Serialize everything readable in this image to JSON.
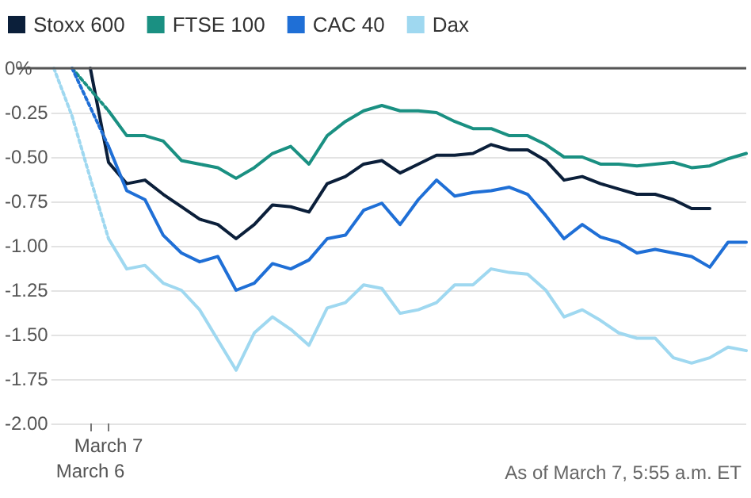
{
  "chart_data": {
    "type": "line",
    "legend": "top left",
    "grid": "y",
    "line_style": "solid",
    "marker": "none",
    "categories": [
      null,
      null,
      null,
      null,
      "March 6",
      "March 7",
      null,
      null,
      null,
      null,
      null,
      null,
      null,
      null,
      null,
      null,
      null,
      null,
      null,
      null,
      null,
      null,
      null,
      null,
      null,
      null,
      null,
      null,
      null,
      null,
      null,
      null,
      null,
      null,
      null,
      null,
      null,
      null,
      null,
      null,
      null
    ],
    "ylim": [
      -2,
      0
    ],
    "yticks": [
      {
        "value": 0,
        "label": "0%"
      },
      {
        "value": -0.25,
        "label": "-0.25"
      },
      {
        "value": -0.5,
        "label": "-0.50"
      },
      {
        "value": -0.75,
        "label": "-0.75"
      },
      {
        "value": -1,
        "label": "-1.00"
      },
      {
        "value": -1.25,
        "label": "-1.25"
      },
      {
        "value": -1.5,
        "label": "-1.50"
      },
      {
        "value": -1.75,
        "label": "-1.75"
      },
      {
        "value": -2,
        "label": "-2.00"
      }
    ],
    "ref_lines": [
      {
        "axis": "y",
        "value": 0,
        "color": "#555555"
      }
    ],
    "annotations": [
      "As of March 7, 5:55 a.m. ET"
    ],
    "series": [
      {
        "name": "Stoxx 600",
        "color": "#0b1f3a",
        "values": [
          null,
          null,
          null,
          null,
          0,
          -0.53,
          -0.65,
          -0.63,
          -0.71,
          -0.78,
          -0.85,
          -0.88,
          -0.96,
          -0.88,
          -0.77,
          -0.78,
          -0.81,
          -0.65,
          -0.61,
          -0.54,
          -0.52,
          -0.59,
          -0.54,
          -0.49,
          -0.49,
          -0.48,
          -0.43,
          -0.46,
          -0.46,
          -0.52,
          -0.63,
          -0.61,
          -0.65,
          -0.68,
          -0.71,
          -0.71,
          -0.74,
          -0.79,
          -0.79,
          null,
          null
        ]
      },
      {
        "name": "FTSE 100",
        "color": "#1a9082",
        "values": [
          null,
          null,
          null,
          null,
          null,
          -0.24,
          -0.38,
          -0.38,
          -0.41,
          -0.52,
          -0.54,
          -0.56,
          -0.62,
          -0.56,
          -0.48,
          -0.44,
          -0.54,
          -0.38,
          -0.3,
          -0.24,
          -0.21,
          -0.24,
          -0.24,
          -0.25,
          -0.3,
          -0.34,
          -0.34,
          -0.38,
          -0.38,
          -0.43,
          -0.5,
          -0.5,
          -0.54,
          -0.54,
          -0.55,
          -0.54,
          -0.53,
          -0.56,
          -0.55,
          -0.51,
          -0.48
        ]
      },
      {
        "name": "CAC 40",
        "color": "#1f6fd6",
        "values": [
          null,
          null,
          null,
          null,
          null,
          -0.44,
          -0.69,
          -0.74,
          -0.94,
          -1.04,
          -1.09,
          -1.06,
          -1.25,
          -1.21,
          -1.1,
          -1.13,
          -1.08,
          -0.96,
          -0.94,
          -0.8,
          -0.76,
          -0.88,
          -0.74,
          -0.63,
          -0.72,
          -0.7,
          -0.69,
          -0.67,
          -0.71,
          -0.83,
          -0.96,
          -0.88,
          -0.95,
          -0.98,
          -1.04,
          -1.02,
          -1.04,
          -1.06,
          -1.12,
          -0.98,
          -0.98
        ]
      },
      {
        "name": "Dax",
        "color": "#9fd8f0",
        "values": [
          null,
          null,
          null,
          null,
          null,
          -0.96,
          -1.13,
          -1.11,
          -1.21,
          -1.25,
          -1.36,
          -1.53,
          -1.7,
          -1.49,
          -1.4,
          -1.47,
          -1.56,
          -1.35,
          -1.32,
          -1.22,
          -1.24,
          -1.38,
          -1.36,
          -1.32,
          -1.22,
          -1.22,
          -1.13,
          -1.15,
          -1.16,
          -1.25,
          -1.4,
          -1.36,
          -1.42,
          -1.49,
          -1.52,
          -1.52,
          -1.63,
          -1.66,
          -1.63,
          -1.57,
          -1.59
        ]
      },
      {
        "color": "#1a9082",
        "line_style": "dotted",
        "values": [
          null,
          null,
          null,
          0,
          -0.12,
          -0.24,
          null,
          null,
          null,
          null,
          null,
          null,
          null,
          null,
          null,
          null,
          null,
          null,
          null,
          null,
          null,
          null,
          null,
          null,
          null,
          null,
          null,
          null,
          null,
          null,
          null,
          null,
          null,
          null,
          null,
          null,
          null,
          null,
          null,
          null,
          null
        ]
      },
      {
        "color": "#1f6fd6",
        "line_style": "dotted",
        "values": [
          null,
          null,
          null,
          0,
          -0.22,
          -0.44,
          null,
          null,
          null,
          null,
          null,
          null,
          null,
          null,
          null,
          null,
          null,
          null,
          null,
          null,
          null,
          null,
          null,
          null,
          null,
          null,
          null,
          null,
          null,
          null,
          null,
          null,
          null,
          null,
          null,
          null,
          null,
          null,
          null,
          null,
          null
        ]
      },
      {
        "color": "#9fd8f0",
        "line_style": "dotted",
        "values": [
          null,
          null,
          0,
          -0.27,
          -0.62,
          -0.96,
          null,
          null,
          null,
          null,
          null,
          null,
          null,
          null,
          null,
          null,
          null,
          null,
          null,
          null,
          null,
          null,
          null,
          null,
          null,
          null,
          null,
          null,
          null,
          null,
          null,
          null,
          null,
          null,
          null,
          null,
          null,
          null,
          null,
          null,
          null
        ]
      }
    ]
  }
}
